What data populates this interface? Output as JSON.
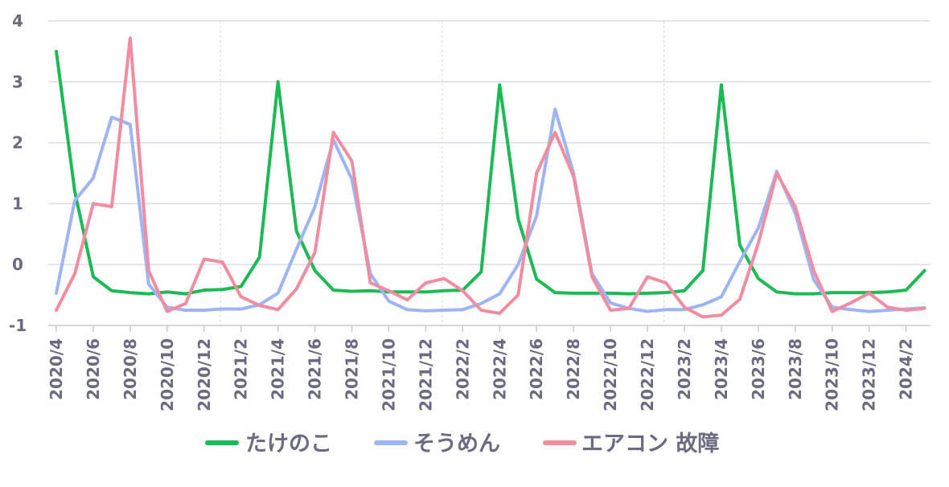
{
  "chart_data": {
    "type": "line",
    "x": [
      "2020/4",
      "2020/5",
      "2020/6",
      "2020/7",
      "2020/8",
      "2020/9",
      "2020/10",
      "2020/11",
      "2020/12",
      "2021/1",
      "2021/2",
      "2021/3",
      "2021/4",
      "2021/5",
      "2021/6",
      "2021/7",
      "2021/8",
      "2021/9",
      "2021/10",
      "2021/11",
      "2021/12",
      "2022/1",
      "2022/2",
      "2022/3",
      "2022/4",
      "2022/5",
      "2022/6",
      "2022/7",
      "2022/8",
      "2022/9",
      "2022/10",
      "2022/11",
      "2022/12",
      "2023/1",
      "2023/2",
      "2023/3",
      "2023/4",
      "2023/5",
      "2023/6",
      "2023/7",
      "2023/8",
      "2023/9",
      "2023/10",
      "2023/11",
      "2023/12",
      "2024/1",
      "2024/2",
      "2024/3"
    ],
    "x_tick_labels": [
      "2020/4",
      "2020/6",
      "2020/8",
      "2020/10",
      "2020/12",
      "2021/2",
      "2021/4",
      "2021/6",
      "2021/8",
      "2021/10",
      "2021/12",
      "2022/2",
      "2022/4",
      "2022/6",
      "2022/8",
      "2022/10",
      "2022/12",
      "2023/2",
      "2023/4",
      "2023/6",
      "2023/8",
      "2023/10",
      "2023/12",
      "2024/2"
    ],
    "ylim": [
      -1,
      4
    ],
    "y_ticks": [
      "-1",
      "0",
      "1",
      "2",
      "3",
      "4"
    ],
    "grid": true,
    "legend_position": "bottom",
    "series": [
      {
        "name": "たけのこ",
        "color": "#1db954",
        "values": [
          3.5,
          1.2,
          -0.2,
          -0.43,
          -0.46,
          -0.48,
          -0.45,
          -0.48,
          -0.42,
          -0.41,
          -0.36,
          0.12,
          3.0,
          0.55,
          -0.1,
          -0.42,
          -0.44,
          -0.43,
          -0.45,
          -0.45,
          -0.45,
          -0.43,
          -0.42,
          -0.12,
          2.95,
          0.75,
          -0.24,
          -0.46,
          -0.47,
          -0.47,
          -0.47,
          -0.48,
          -0.47,
          -0.46,
          -0.43,
          -0.1,
          2.95,
          0.32,
          -0.23,
          -0.45,
          -0.48,
          -0.48,
          -0.46,
          -0.46,
          -0.46,
          -0.45,
          -0.42,
          -0.1
        ]
      },
      {
        "name": "そうめん",
        "color": "#9db4f5",
        "values": [
          -0.47,
          1.05,
          1.42,
          2.42,
          2.3,
          -0.32,
          -0.7,
          -0.75,
          -0.75,
          -0.73,
          -0.73,
          -0.66,
          -0.47,
          0.25,
          0.95,
          2.05,
          1.4,
          -0.15,
          -0.6,
          -0.74,
          -0.76,
          -0.75,
          -0.74,
          -0.64,
          -0.48,
          0.0,
          0.8,
          2.55,
          1.5,
          -0.15,
          -0.63,
          -0.72,
          -0.77,
          -0.74,
          -0.74,
          -0.66,
          -0.53,
          0.05,
          0.6,
          1.53,
          0.85,
          -0.25,
          -0.7,
          -0.74,
          -0.77,
          -0.75,
          -0.73,
          -0.71
        ]
      },
      {
        "name": "エアコン 故障",
        "color": "#f28ca0",
        "values": [
          -0.75,
          -0.15,
          1.0,
          0.95,
          3.72,
          -0.1,
          -0.77,
          -0.64,
          0.09,
          0.04,
          -0.53,
          -0.67,
          -0.74,
          -0.4,
          0.2,
          2.17,
          1.7,
          -0.3,
          -0.43,
          -0.58,
          -0.3,
          -0.23,
          -0.43,
          -0.75,
          -0.8,
          -0.5,
          1.5,
          2.17,
          1.45,
          -0.2,
          -0.75,
          -0.72,
          -0.2,
          -0.3,
          -0.7,
          -0.86,
          -0.83,
          -0.57,
          0.35,
          1.5,
          0.95,
          -0.1,
          -0.77,
          -0.63,
          -0.47,
          -0.7,
          -0.75,
          -0.72
        ]
      }
    ]
  }
}
